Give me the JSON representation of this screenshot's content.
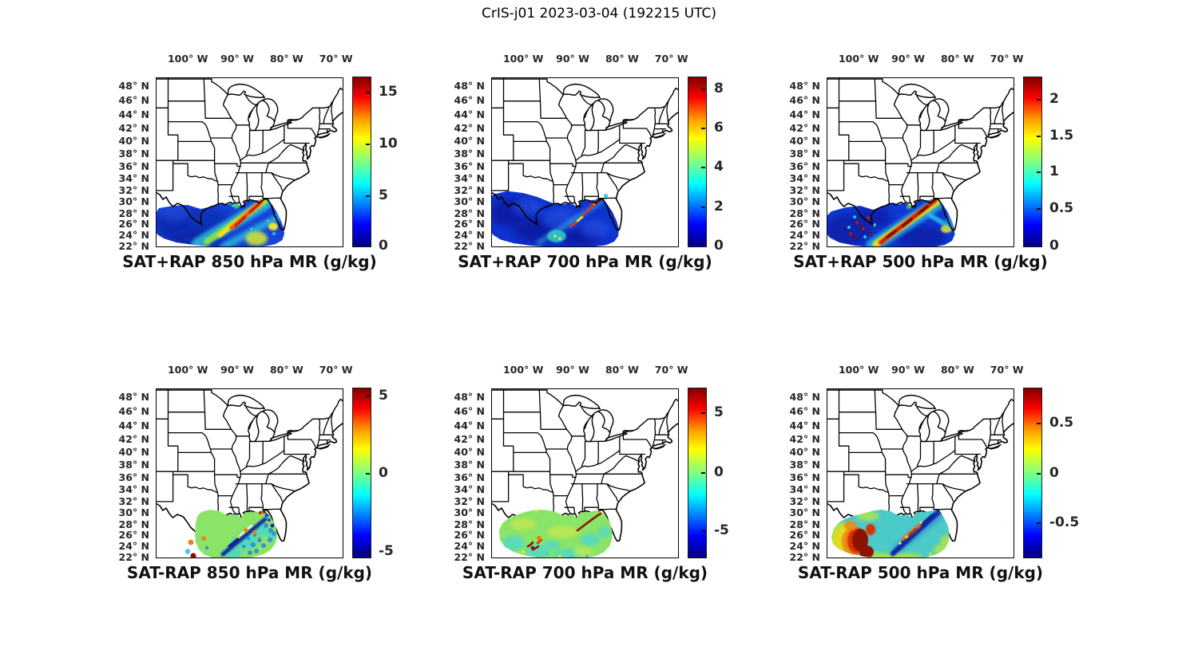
{
  "figure_title": "CrIS-j01 2023-03-04 (192215 UTC)",
  "axes": {
    "lon_ticks": [
      "100° W",
      "90° W",
      "80° W",
      "70° W"
    ],
    "lon_values": [
      100,
      90,
      80,
      70
    ],
    "lat_ticks": [
      "48° N",
      "46° N",
      "44° N",
      "42° N",
      "40° N",
      "38° N",
      "36° N",
      "34° N",
      "32° N",
      "30° N",
      "28° N",
      "26° N",
      "24° N",
      "22° N"
    ],
    "lat_values": [
      48,
      46,
      44,
      42,
      40,
      38,
      36,
      34,
      32,
      30,
      28,
      26,
      24,
      22
    ]
  },
  "colormap": {
    "name": "jet",
    "stops": [
      "#00007F",
      "#0000FF",
      "#0080FF",
      "#00FFFF",
      "#80FF80",
      "#FFFF00",
      "#FF9F00",
      "#FF0000",
      "#7F0000"
    ]
  },
  "panels": [
    {
      "id": "sat-plus-rap-850",
      "title": "SAT+RAP 850 hPa MR (g/kg)",
      "colorbar": {
        "ticks": [
          {
            "label": "15",
            "f": 0.089
          },
          {
            "label": "10",
            "f": 0.393
          },
          {
            "label": "5",
            "f": 0.696
          },
          {
            "label": "0",
            "f": 0.992
          }
        ]
      }
    },
    {
      "id": "sat-plus-rap-700",
      "title": "SAT+RAP 700 hPa MR (g/kg)",
      "colorbar": {
        "ticks": [
          {
            "label": "8",
            "f": 0.07
          },
          {
            "label": "6",
            "f": 0.3
          },
          {
            "label": "4",
            "f": 0.53
          },
          {
            "label": "2",
            "f": 0.762
          },
          {
            "label": "0",
            "f": 0.992
          }
        ]
      }
    },
    {
      "id": "sat-plus-rap-500",
      "title": "SAT+RAP 500 hPa MR (g/kg)",
      "colorbar": {
        "ticks": [
          {
            "label": "2",
            "f": 0.132
          },
          {
            "label": "1.5",
            "f": 0.346
          },
          {
            "label": "1",
            "f": 0.558
          },
          {
            "label": "0.5",
            "f": 0.772
          },
          {
            "label": "0",
            "f": 0.992
          }
        ]
      }
    },
    {
      "id": "sat-minus-rap-850",
      "title": "SAT-RAP 850 hPa MR (g/kg)",
      "colorbar": {
        "ticks": [
          {
            "label": "5",
            "f": 0.047
          },
          {
            "label": "0",
            "f": 0.5
          },
          {
            "label": "-5",
            "f": 0.957
          }
        ]
      }
    },
    {
      "id": "sat-minus-rap-700",
      "title": "SAT-RAP 700 hPa MR (g/kg)",
      "colorbar": {
        "ticks": [
          {
            "label": "5",
            "f": 0.147
          },
          {
            "label": "0",
            "f": 0.496
          },
          {
            "label": "-5",
            "f": 0.837
          }
        ]
      }
    },
    {
      "id": "sat-minus-rap-500",
      "title": "SAT-RAP 500 hPa MR (g/kg)",
      "colorbar": {
        "ticks": [
          {
            "label": "0.5",
            "f": 0.206
          },
          {
            "label": "0",
            "f": 0.5
          },
          {
            "label": "-0.5",
            "f": 0.788
          }
        ]
      }
    }
  ],
  "chart_data": {
    "type": "heatmap",
    "title": "CrIS-j01 2023-03-04 (192215 UTC)",
    "grid": "2 rows x 3 columns of geographic maps (eastern North America, Mercator-like)",
    "lon_range_deg_west": [
      106.5,
      68.5
    ],
    "lat_range_deg_north": [
      21.8,
      49.2
    ],
    "lon_ticks_deg_west": [
      100,
      90,
      80,
      70
    ],
    "lat_ticks_deg_north": [
      48,
      46,
      44,
      42,
      40,
      38,
      36,
      34,
      32,
      30,
      28,
      26,
      24,
      22
    ],
    "colormap": "jet",
    "panels": [
      {
        "position": "top-left",
        "title": "SAT+RAP 850 hPa MR (g/kg)",
        "colorbar_ticks": [
          0,
          5,
          10,
          15
        ],
        "colorbar_range": [
          0,
          16.5
        ],
        "pattern": "Satellite swath over Gulf of Mexico, mostly blue (2-4) with diagonal yellow-orange-red moisture band (10-15) running SW-NE toward the Florida panhandle and cyan/yellow patches in the southeast."
      },
      {
        "position": "top-center",
        "title": "SAT+RAP 700 hPa MR (g/kg)",
        "colorbar_ticks": [
          0,
          2,
          4,
          6,
          8
        ],
        "colorbar_range": [
          0,
          8.6
        ],
        "pattern": "Same swath, mostly dark blue (0-2) with broken yellow/red streaks (5-8) along the SW-NE diagonal near the Florida panhandle and a small cyan-green patch in the south-central Gulf."
      },
      {
        "position": "top-right",
        "title": "SAT+RAP 500 hPa MR (g/kg)",
        "colorbar_ticks": [
          0,
          0.5,
          1,
          1.5,
          2
        ],
        "colorbar_range": [
          0,
          2.3
        ],
        "pattern": "Same swath, blue background (0-0.5) with a strong red/dark-red core band (2+) flanked by yellow and cyan running SW-NE, plus red and cyan speckles over the western Gulf."
      },
      {
        "position": "bottom-left",
        "title": "SAT-RAP 850 hPa MR (g/kg)",
        "colorbar_ticks": [
          -5,
          0,
          5
        ],
        "colorbar_range": [
          -5.5,
          5.5
        ],
        "pattern": "Scattered retrieval points over the Gulf, mostly light green (~0) with a dark-blue negative streak (-4 to -5) along the diagonal, blue points southeast, and isolated orange/dark-red points west and near the Florida coast."
      },
      {
        "position": "bottom-center",
        "title": "SAT-RAP 700 hPa MR (g/kg)",
        "colorbar_ticks": [
          -5,
          0,
          5
        ],
        "colorbar_range": [
          -7.2,
          7.2
        ],
        "pattern": "Scattered points mostly light green (~0) with cyan patches, short dark-red crescent streaks (+5 or more) along the diagonal and near south Texas, and a few yellow/orange points."
      },
      {
        "position": "bottom-right",
        "title": "SAT-RAP 500 hPa MR (g/kg)",
        "colorbar_ticks": [
          -0.5,
          0,
          0.5
        ],
        "colorbar_range": [
          -0.85,
          0.85
        ],
        "pattern": "Large dark-red positive blob (>0.5) over south Texas / northern Mexico ringed by orange-yellow-green, and a cyan field east of it with a strong dark-blue negative streak and a short orange streak along the diagonal."
      }
    ]
  }
}
